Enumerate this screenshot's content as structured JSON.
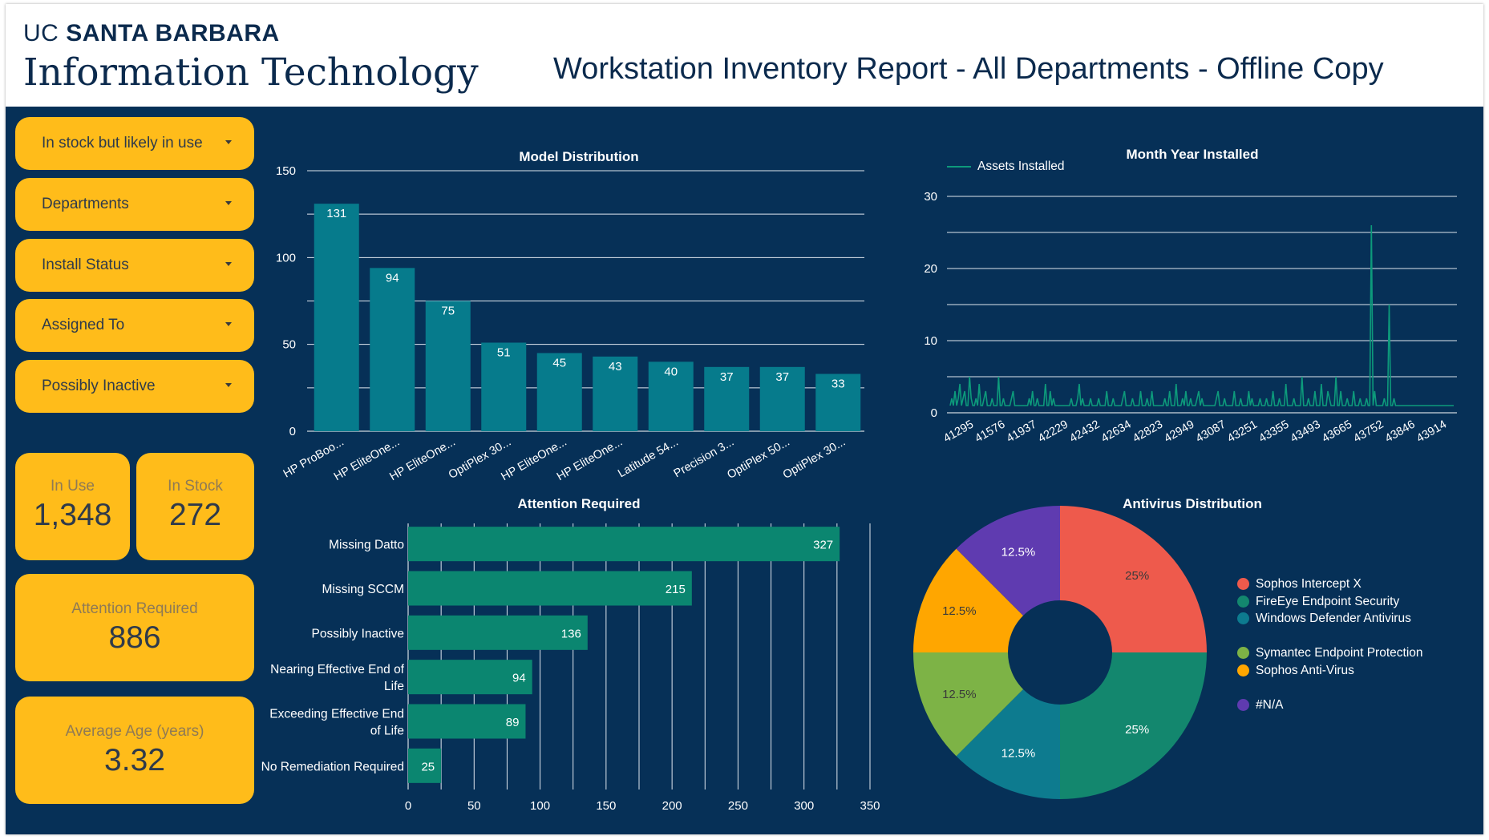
{
  "header": {
    "brand_uc": "UC",
    "brand_santa_barbara": "SANTA BARBARA",
    "brand_sub": "Information Technology",
    "report_title": "Workstation Inventory Report - All Departments - Offline Copy"
  },
  "filters": [
    {
      "label": "In stock but likely in use"
    },
    {
      "label": "Departments"
    },
    {
      "label": "Install Status"
    },
    {
      "label": "Assigned To"
    },
    {
      "label": "Possibly Inactive"
    }
  ],
  "kpis": {
    "in_use": {
      "label": "In Use",
      "value": "1,348"
    },
    "in_stock": {
      "label": "In Stock",
      "value": "272"
    },
    "attention": {
      "label": "Attention Required",
      "value": "886"
    },
    "avg_age": {
      "label": "Average Age (years)",
      "value": "3.32"
    }
  },
  "colors": {
    "background": "#063057",
    "accent": "#ffbc1a",
    "bar_model": "#067b8c",
    "bar_attention": "#0b8670",
    "line": "#0d9a7b"
  },
  "chart_data": [
    {
      "id": "model",
      "type": "bar",
      "title": "Model Distribution",
      "categories": [
        "HP ProBoo...",
        "HP EliteOne...",
        "HP EliteOne...",
        "OptiPlex 30...",
        "HP EliteOne...",
        "HP EliteOne...",
        "Latitude 54...",
        "Precision 3...",
        "OptiPlex 50...",
        "OptiPlex 30..."
      ],
      "values": [
        131,
        94,
        75,
        51,
        45,
        43,
        40,
        37,
        37,
        33
      ],
      "ylim": [
        0,
        150
      ],
      "yticks": [
        0,
        50,
        100,
        150
      ],
      "grid": true
    },
    {
      "id": "installed",
      "type": "line",
      "title": "Month Year Installed",
      "series": [
        {
          "name": "Assets Installed"
        }
      ],
      "x_ticks": [
        "41295",
        "41576",
        "41937",
        "42229",
        "42432",
        "42634",
        "42823",
        "42949",
        "43087",
        "43251",
        "43355",
        "43493",
        "43665",
        "43752",
        "43846",
        "43914"
      ],
      "values": [
        1,
        2,
        1,
        3,
        1,
        2,
        4,
        1,
        2,
        3,
        1,
        1,
        5,
        2,
        1,
        1,
        2,
        1,
        4,
        1,
        1,
        2,
        3,
        1,
        1,
        1,
        2,
        1,
        1,
        1,
        5,
        1,
        1,
        2,
        1,
        1,
        1,
        1,
        2,
        3,
        1,
        1,
        1,
        1,
        1,
        1,
        1,
        1,
        1,
        2,
        1,
        3,
        1,
        1,
        2,
        1,
        1,
        1,
        1,
        4,
        1,
        1,
        3,
        1,
        2,
        1,
        1,
        1,
        1,
        1,
        1,
        1,
        1,
        1,
        1,
        2,
        1,
        1,
        1,
        2,
        4,
        1,
        2,
        1,
        1,
        1,
        1,
        2,
        1,
        1,
        1,
        1,
        2,
        1,
        1,
        1,
        1,
        3,
        1,
        1,
        1,
        2,
        1,
        1,
        1,
        1,
        1,
        2,
        3,
        1,
        1,
        1,
        1,
        2,
        1,
        1,
        1,
        1,
        3,
        1,
        1,
        1,
        2,
        1,
        1,
        3,
        1,
        1,
        1,
        1,
        1,
        1,
        1,
        2,
        1,
        1,
        3,
        1,
        1,
        1,
        4,
        1,
        1,
        1,
        2,
        1,
        3,
        1,
        1,
        2,
        1,
        1,
        1,
        2,
        3,
        1,
        2,
        1,
        1,
        1,
        1,
        1,
        1,
        1,
        1,
        2,
        3,
        1,
        1,
        1,
        2,
        1,
        1,
        1,
        1,
        1,
        3,
        1,
        1,
        1,
        2,
        1,
        1,
        1,
        1,
        3,
        1,
        2,
        1,
        1,
        1,
        1,
        2,
        1,
        1,
        1,
        2,
        1,
        1,
        1,
        3,
        1,
        1,
        1,
        2,
        1,
        1,
        1,
        4,
        1,
        1,
        1,
        1,
        2,
        1,
        1,
        1,
        1,
        5,
        1,
        1,
        1,
        2,
        1,
        1,
        1,
        3,
        1,
        1,
        1,
        4,
        1,
        1,
        1,
        3,
        2,
        1,
        1,
        1,
        5,
        1,
        1,
        3,
        1,
        1,
        1,
        2,
        1,
        1,
        1,
        3,
        1,
        1,
        1,
        2,
        1,
        1,
        1,
        2,
        1,
        1,
        26,
        1,
        3,
        1,
        1,
        1,
        1,
        1,
        2,
        1,
        1,
        15,
        1,
        1,
        2,
        1,
        1,
        1,
        1,
        1,
        1,
        1,
        1,
        1,
        1,
        1,
        1,
        1,
        1,
        1,
        1,
        1,
        1,
        1,
        1,
        1,
        1,
        1,
        1,
        1,
        1,
        1,
        1,
        1,
        1,
        1,
        1,
        1,
        1,
        1,
        1,
        1
      ],
      "ylim": [
        0,
        30
      ],
      "yticks": [
        0,
        10,
        20,
        30
      ],
      "legend": "top-left",
      "grid": true
    },
    {
      "id": "attention",
      "type": "bar",
      "orientation": "horizontal",
      "title": "Attention Required",
      "categories": [
        "Missing Datto",
        "Missing SCCM",
        "Possibly Inactive",
        "Nearing Effective End of Life",
        "Exceeding Effective End of Life",
        "No Remediation Required"
      ],
      "values": [
        327,
        215,
        136,
        94,
        89,
        25
      ],
      "xlim": [
        0,
        350
      ],
      "xticks": [
        0,
        50,
        100,
        150,
        200,
        250,
        300,
        350
      ],
      "grid": true
    },
    {
      "id": "antivirus",
      "type": "pie",
      "title": "Antivirus Distribution",
      "labels": [
        "Sophos Intercept X",
        "FireEye Endpoint Security",
        "Windows Defender Antivirus",
        "Symantec Endpoint Protection",
        "Sophos Anti-Virus",
        "#N/A"
      ],
      "values": [
        25,
        25,
        12.5,
        12.5,
        12.5,
        12.5
      ],
      "value_labels": [
        "25%",
        "25%",
        "12.5%",
        "12.5%",
        "12.5%",
        "12.5%"
      ],
      "colors": [
        "#ee5a4c",
        "#13876e",
        "#0d7b8f",
        "#7db346",
        "#ffa600",
        "#5f3bb0"
      ],
      "legend": "right"
    }
  ]
}
